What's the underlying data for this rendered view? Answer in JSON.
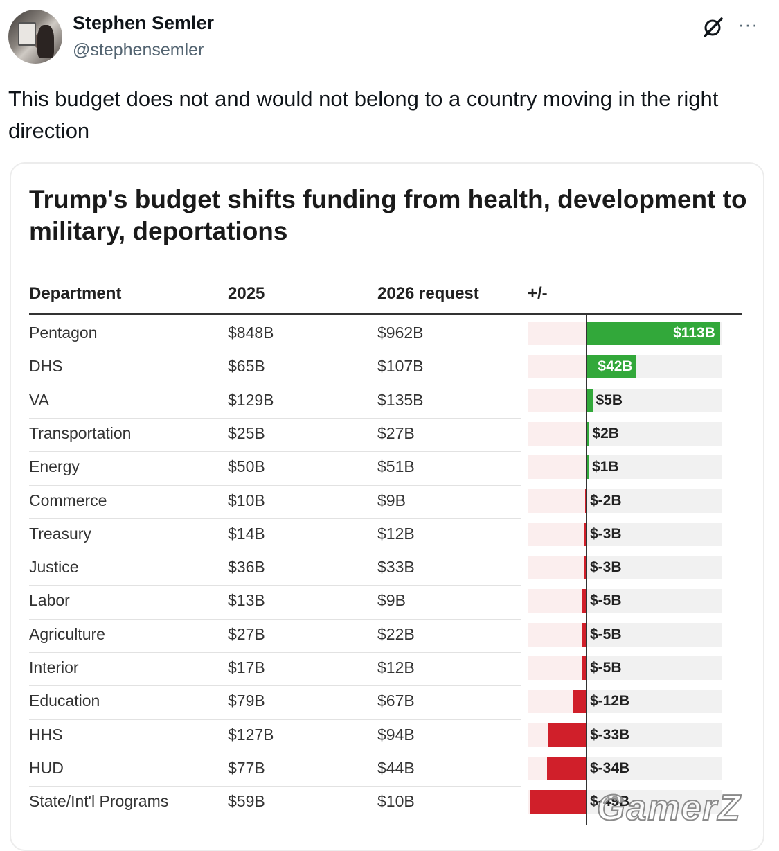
{
  "tweet": {
    "author_name": "Stephen Semler",
    "author_handle": "@stephensemler",
    "more_label": "···",
    "text": "This budget does not and would not belong to a country moving in the right direction"
  },
  "chart_data": {
    "type": "table",
    "title": "Trump's budget shifts funding from health, development to military, deportations",
    "columns": [
      "Department",
      "2025",
      "2026 request",
      "+/-"
    ],
    "rows": [
      {
        "department": "Pentagon",
        "y2025": "$848B",
        "y2026": "$962B",
        "change": 113,
        "change_label": "$113B"
      },
      {
        "department": "DHS",
        "y2025": "$65B",
        "y2026": "$107B",
        "change": 42,
        "change_label": "$42B"
      },
      {
        "department": "VA",
        "y2025": "$129B",
        "y2026": "$135B",
        "change": 5,
        "change_label": "$5B"
      },
      {
        "department": "Transportation",
        "y2025": "$25B",
        "y2026": "$27B",
        "change": 2,
        "change_label": "$2B"
      },
      {
        "department": "Energy",
        "y2025": "$50B",
        "y2026": "$51B",
        "change": 1,
        "change_label": "$1B"
      },
      {
        "department": "Commerce",
        "y2025": "$10B",
        "y2026": "$9B",
        "change": -2,
        "change_label": "$-2B"
      },
      {
        "department": "Treasury",
        "y2025": "$14B",
        "y2026": "$12B",
        "change": -3,
        "change_label": "$-3B"
      },
      {
        "department": "Justice",
        "y2025": "$36B",
        "y2026": "$33B",
        "change": -3,
        "change_label": "$-3B"
      },
      {
        "department": "Labor",
        "y2025": "$13B",
        "y2026": "$9B",
        "change": -5,
        "change_label": "$-5B"
      },
      {
        "department": "Agriculture",
        "y2025": "$27B",
        "y2026": "$22B",
        "change": -5,
        "change_label": "$-5B"
      },
      {
        "department": "Interior",
        "y2025": "$17B",
        "y2026": "$12B",
        "change": -5,
        "change_label": "$-5B"
      },
      {
        "department": "Education",
        "y2025": "$79B",
        "y2026": "$67B",
        "change": -12,
        "change_label": "$-12B"
      },
      {
        "department": "HHS",
        "y2025": "$127B",
        "y2026": "$94B",
        "change": -33,
        "change_label": "$-33B"
      },
      {
        "department": "HUD",
        "y2025": "$77B",
        "y2026": "$44B",
        "change": -34,
        "change_label": "$-34B"
      },
      {
        "department": "State/Int'l Programs",
        "y2025": "$59B",
        "y2026": "$10B",
        "change": -49,
        "change_label": "$-49B"
      }
    ],
    "colors": {
      "increase": "#32a83a",
      "decrease": "#d01f2a"
    }
  },
  "watermark": "GamerZ"
}
